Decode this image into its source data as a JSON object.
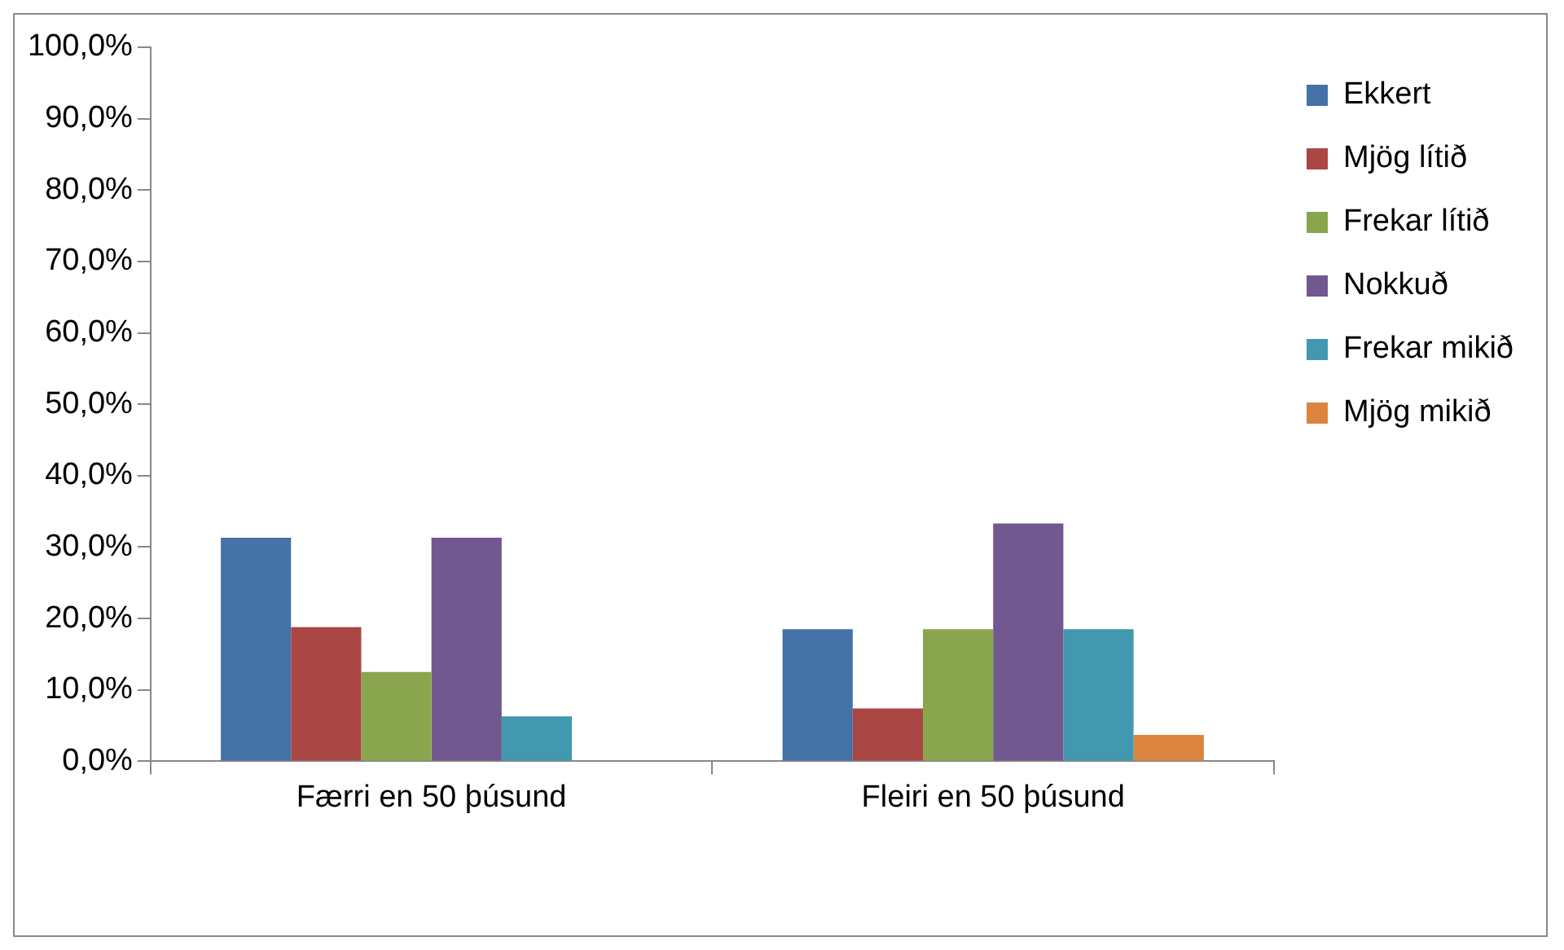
{
  "chart_data": {
    "type": "bar",
    "categories": [
      "Færri en 50 þúsund",
      "Fleiri en 50 þúsund"
    ],
    "series": [
      {
        "name": "Ekkert",
        "color": "#4572a7",
        "values": [
          31.3,
          18.5
        ]
      },
      {
        "name": "Mjög lítið",
        "color": "#aa4643",
        "values": [
          18.8,
          7.4
        ]
      },
      {
        "name": "Frekar lítið",
        "color": "#89a54e",
        "values": [
          12.5,
          18.5
        ]
      },
      {
        "name": "Nokkuð",
        "color": "#71588f",
        "values": [
          31.3,
          33.3
        ]
      },
      {
        "name": "Frekar mikið",
        "color": "#4198af",
        "values": [
          6.3,
          18.5
        ]
      },
      {
        "name": "Mjög mikið",
        "color": "#db843d",
        "values": [
          0,
          3.7
        ]
      }
    ],
    "ylim": [
      0,
      100
    ],
    "yticks": [
      {
        "value": 0,
        "label": "0,0%"
      },
      {
        "value": 10,
        "label": "10,0%"
      },
      {
        "value": 20,
        "label": "20,0%"
      },
      {
        "value": 30,
        "label": "30,0%"
      },
      {
        "value": 40,
        "label": "40,0%"
      },
      {
        "value": 50,
        "label": "50,0%"
      },
      {
        "value": 60,
        "label": "60,0%"
      },
      {
        "value": 70,
        "label": "70,0%"
      },
      {
        "value": 80,
        "label": "80,0%"
      },
      {
        "value": 90,
        "label": "90,0%"
      },
      {
        "value": 100,
        "label": "100,0%"
      }
    ],
    "grid": false,
    "legend": "right"
  }
}
